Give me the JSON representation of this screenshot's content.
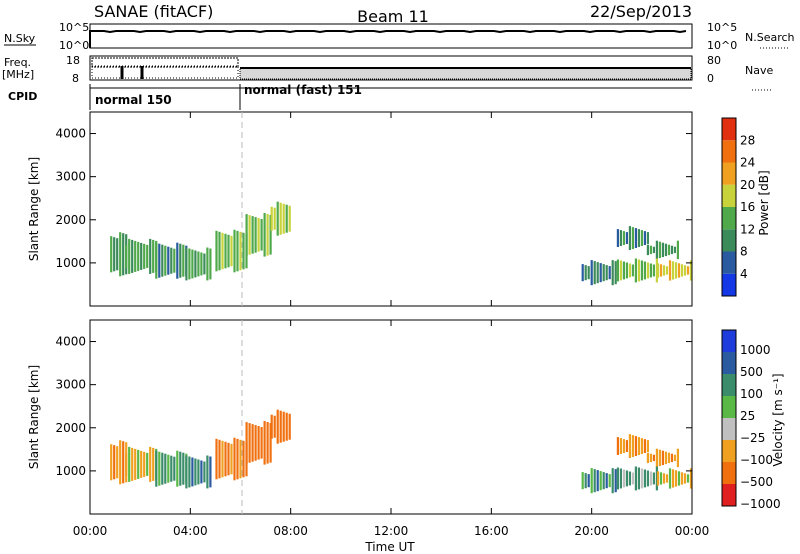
{
  "header": {
    "station": "SANAE (fitACF)",
    "beam": "Beam 11",
    "date": "22/Sep/2013"
  },
  "status_panels": {
    "nsky_label": "N.Sky",
    "nsearch_label": "N.Search",
    "noise_ticks": [
      "10^5",
      "10^0"
    ],
    "freq_label": "Freq.",
    "freq_unit": "[MHz]",
    "freq_ticks": [
      "18",
      "8"
    ],
    "nave_label": "Nave",
    "nave_ticks": [
      "80",
      "0"
    ],
    "cpid_label": "CPID",
    "cpid_modes": [
      {
        "label": "normal 150",
        "start_hour": 0,
        "end_hour": 6
      },
      {
        "label": "normal (fast) 151",
        "start_hour": 6,
        "end_hour": 24
      }
    ]
  },
  "colors": {
    "power_scale": [
      "#1438e6",
      "#2a5aa0",
      "#3b8a5a",
      "#4fa84a",
      "#c8d23a",
      "#f0a020",
      "#f07010",
      "#e03010"
    ],
    "velocity_scale": [
      "#1e3cdc",
      "#2a5aa0",
      "#3a8c6a",
      "#5ab846",
      "#c0c0c0",
      "#f0a020",
      "#f07010",
      "#e02020"
    ]
  },
  "chart_data": [
    {
      "type": "heatmap",
      "panel": "power",
      "xlabel": "",
      "ylabel": "Slant Range [km]",
      "xlim": [
        0,
        24
      ],
      "ylim": [
        0,
        4500
      ],
      "yticks": [
        1000,
        2000,
        3000,
        4000
      ],
      "colorbar": {
        "label": "Power [dB]",
        "ticks": [
          4,
          8,
          12,
          16,
          20,
          24,
          28
        ],
        "range": [
          0,
          32
        ]
      },
      "regions": [
        {
          "x0": 0.8,
          "x1": 1.4,
          "y0": 750,
          "y1": 1650,
          "value": 10
        },
        {
          "x0": 1.4,
          "x1": 2.6,
          "y0": 800,
          "y1": 1500,
          "value": 12
        },
        {
          "x0": 2.6,
          "x1": 3.8,
          "y0": 700,
          "y1": 1400,
          "value": 11
        },
        {
          "x0": 3.8,
          "x1": 4.8,
          "y0": 650,
          "y1": 1300,
          "value": 13
        },
        {
          "x0": 5.0,
          "x1": 6.2,
          "y0": 850,
          "y1": 1700,
          "value": 14
        },
        {
          "x0": 6.2,
          "x1": 7.2,
          "y0": 1200,
          "y1": 2100,
          "value": 15
        },
        {
          "x0": 7.2,
          "x1": 8.0,
          "y0": 1700,
          "y1": 2350,
          "value": 16
        },
        {
          "x0": 21.0,
          "x1": 22.2,
          "y0": 1350,
          "y1": 1800,
          "value": 9
        },
        {
          "x0": 22.2,
          "x1": 23.4,
          "y0": 1150,
          "y1": 1450,
          "value": 10
        },
        {
          "x0": 19.6,
          "x1": 21.0,
          "y0": 550,
          "y1": 1000,
          "value": 8
        },
        {
          "x0": 21.0,
          "x1": 22.6,
          "y0": 600,
          "y1": 1050,
          "value": 14
        },
        {
          "x0": 22.6,
          "x1": 24.0,
          "y0": 650,
          "y1": 1000,
          "value": 20
        }
      ]
    },
    {
      "type": "heatmap",
      "panel": "velocity",
      "xlabel": "Time UT",
      "ylabel": "Slant Range [km]",
      "xlim": [
        0,
        24
      ],
      "ylim": [
        0,
        4500
      ],
      "yticks": [
        1000,
        2000,
        3000,
        4000
      ],
      "xticks": [
        "00:00",
        "04:00",
        "08:00",
        "12:00",
        "16:00",
        "20:00",
        "00:00"
      ],
      "colorbar": {
        "label": "Velocity [m s⁻¹]",
        "ticks": [
          "1000",
          "500",
          "100",
          "25",
          "−25",
          "−100",
          "−500",
          "−1000"
        ]
      },
      "regions": [
        {
          "x0": 0.8,
          "x1": 1.4,
          "y0": 750,
          "y1": 1650,
          "value": -100
        },
        {
          "x0": 1.4,
          "x1": 2.6,
          "y0": 800,
          "y1": 1500,
          "value": -50
        },
        {
          "x0": 2.6,
          "x1": 3.8,
          "y0": 700,
          "y1": 1400,
          "value": 50
        },
        {
          "x0": 3.8,
          "x1": 4.8,
          "y0": 650,
          "y1": 1300,
          "value": 100
        },
        {
          "x0": 5.0,
          "x1": 6.2,
          "y0": 850,
          "y1": 1700,
          "value": -150
        },
        {
          "x0": 6.2,
          "x1": 7.2,
          "y0": 1200,
          "y1": 2100,
          "value": -200
        },
        {
          "x0": 7.2,
          "x1": 8.0,
          "y0": 1700,
          "y1": 2350,
          "value": -250
        },
        {
          "x0": 21.0,
          "x1": 22.2,
          "y0": 1350,
          "y1": 1800,
          "value": -120
        },
        {
          "x0": 22.2,
          "x1": 23.4,
          "y0": 1150,
          "y1": 1450,
          "value": -100
        },
        {
          "x0": 19.6,
          "x1": 21.0,
          "y0": 550,
          "y1": 1000,
          "value": 60
        },
        {
          "x0": 21.0,
          "x1": 22.6,
          "y0": 600,
          "y1": 1050,
          "value": 0
        },
        {
          "x0": 22.6,
          "x1": 24.0,
          "y0": 650,
          "y1": 1000,
          "value": -30
        }
      ]
    }
  ]
}
